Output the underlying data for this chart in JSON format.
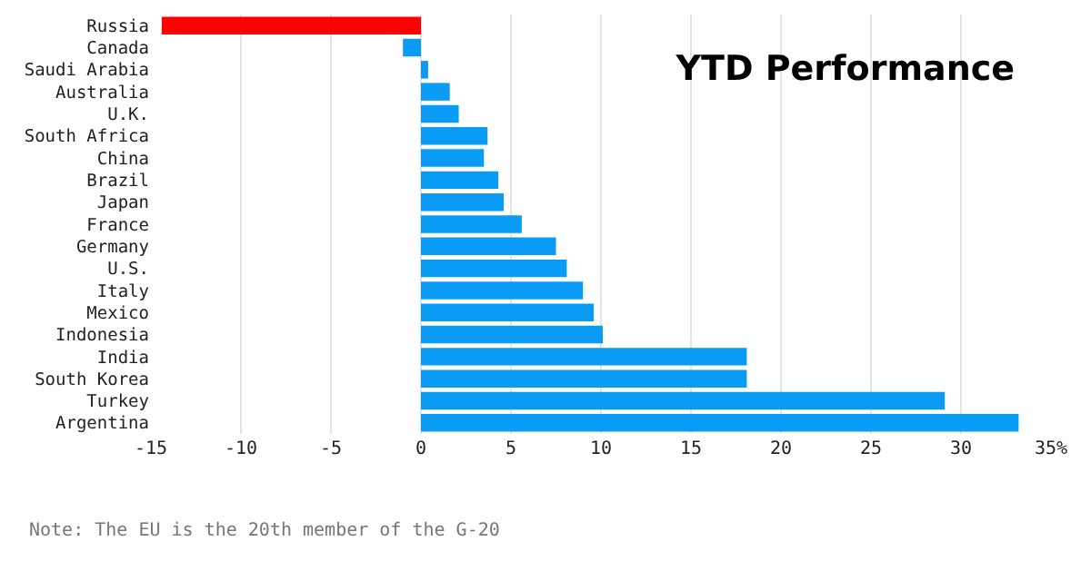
{
  "chart_data": {
    "type": "bar",
    "orientation": "horizontal",
    "title": "YTD Performance",
    "categories": [
      "Russia",
      "Canada",
      "Saudi Arabia",
      "Australia",
      "U.K.",
      "South Africa",
      "China",
      "Brazil",
      "Japan",
      "France",
      "Germany",
      "U.S.",
      "Italy",
      "Mexico",
      "Indonesia",
      "India",
      "South Korea",
      "Turkey",
      "Argentina"
    ],
    "values": [
      -14.4,
      -1.0,
      0.4,
      1.6,
      2.1,
      3.7,
      3.5,
      4.3,
      4.6,
      5.6,
      7.5,
      8.1,
      9.0,
      9.6,
      10.1,
      18.1,
      18.1,
      29.1,
      33.2
    ],
    "colors": [
      "#ff0000",
      "#0a9cf5",
      "#0a9cf5",
      "#0a9cf5",
      "#0a9cf5",
      "#0a9cf5",
      "#0a9cf5",
      "#0a9cf5",
      "#0a9cf5",
      "#0a9cf5",
      "#0a9cf5",
      "#0a9cf5",
      "#0a9cf5",
      "#0a9cf5",
      "#0a9cf5",
      "#0a9cf5",
      "#0a9cf5",
      "#0a9cf5",
      "#0a9cf5"
    ],
    "xlim": [
      -15,
      35
    ],
    "xticks": [
      -15,
      -10,
      -5,
      0,
      5,
      10,
      15,
      20,
      25,
      30,
      {
        "value": 35,
        "label": "35%"
      }
    ],
    "grid": "x",
    "annotations": [
      "Note: The EU is the 20th member of the G-20"
    ]
  }
}
